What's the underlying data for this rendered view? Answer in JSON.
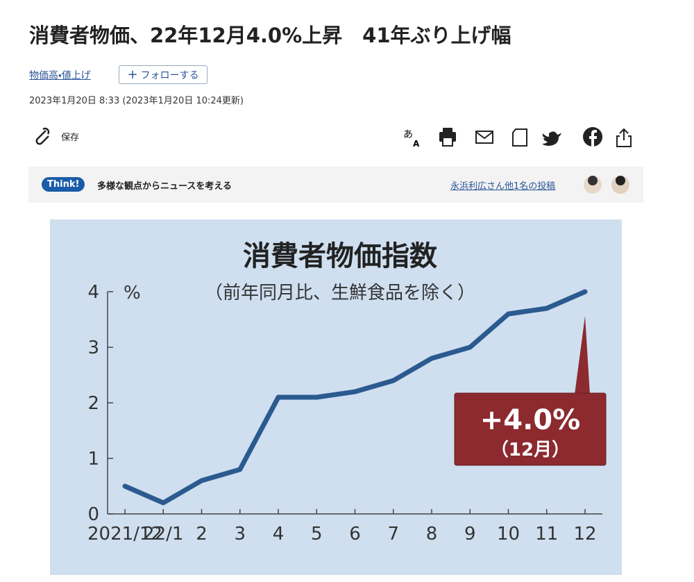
{
  "header": {
    "title": "消費者物価、22年12月4.0%上昇　41年ぶり上げ幅",
    "topic": "物価高・値上げ",
    "follow": "フォローする",
    "date": "2023年1月20日 8:33 (2023年1月20日 10:24更新)"
  },
  "toolbar": {
    "save": "保存"
  },
  "think": {
    "badge": "Think!",
    "text": "多様な観点からニュースを考える",
    "link": "永浜利広さん他1名の投稿"
  },
  "chart_data": {
    "type": "line",
    "title": "消費者物価指数",
    "subtitle": "（前年同月比、生鮮食品を除く）",
    "y_unit": "%",
    "categories": [
      "2021/12",
      "22/1",
      "2",
      "3",
      "4",
      "5",
      "6",
      "7",
      "8",
      "9",
      "10",
      "11",
      "12"
    ],
    "series": [
      {
        "name": "消費者物価指数",
        "color": "#2b5a8f",
        "values": [
          0.5,
          0.2,
          0.6,
          0.8,
          2.1,
          2.1,
          2.2,
          2.4,
          2.8,
          3.0,
          3.6,
          3.7,
          4.0
        ]
      }
    ],
    "ylim": [
      0,
      4
    ],
    "yticks": [
      0,
      1,
      2,
      3,
      4
    ],
    "annotation": {
      "value": "+4.0%",
      "note": "（12月）"
    }
  }
}
